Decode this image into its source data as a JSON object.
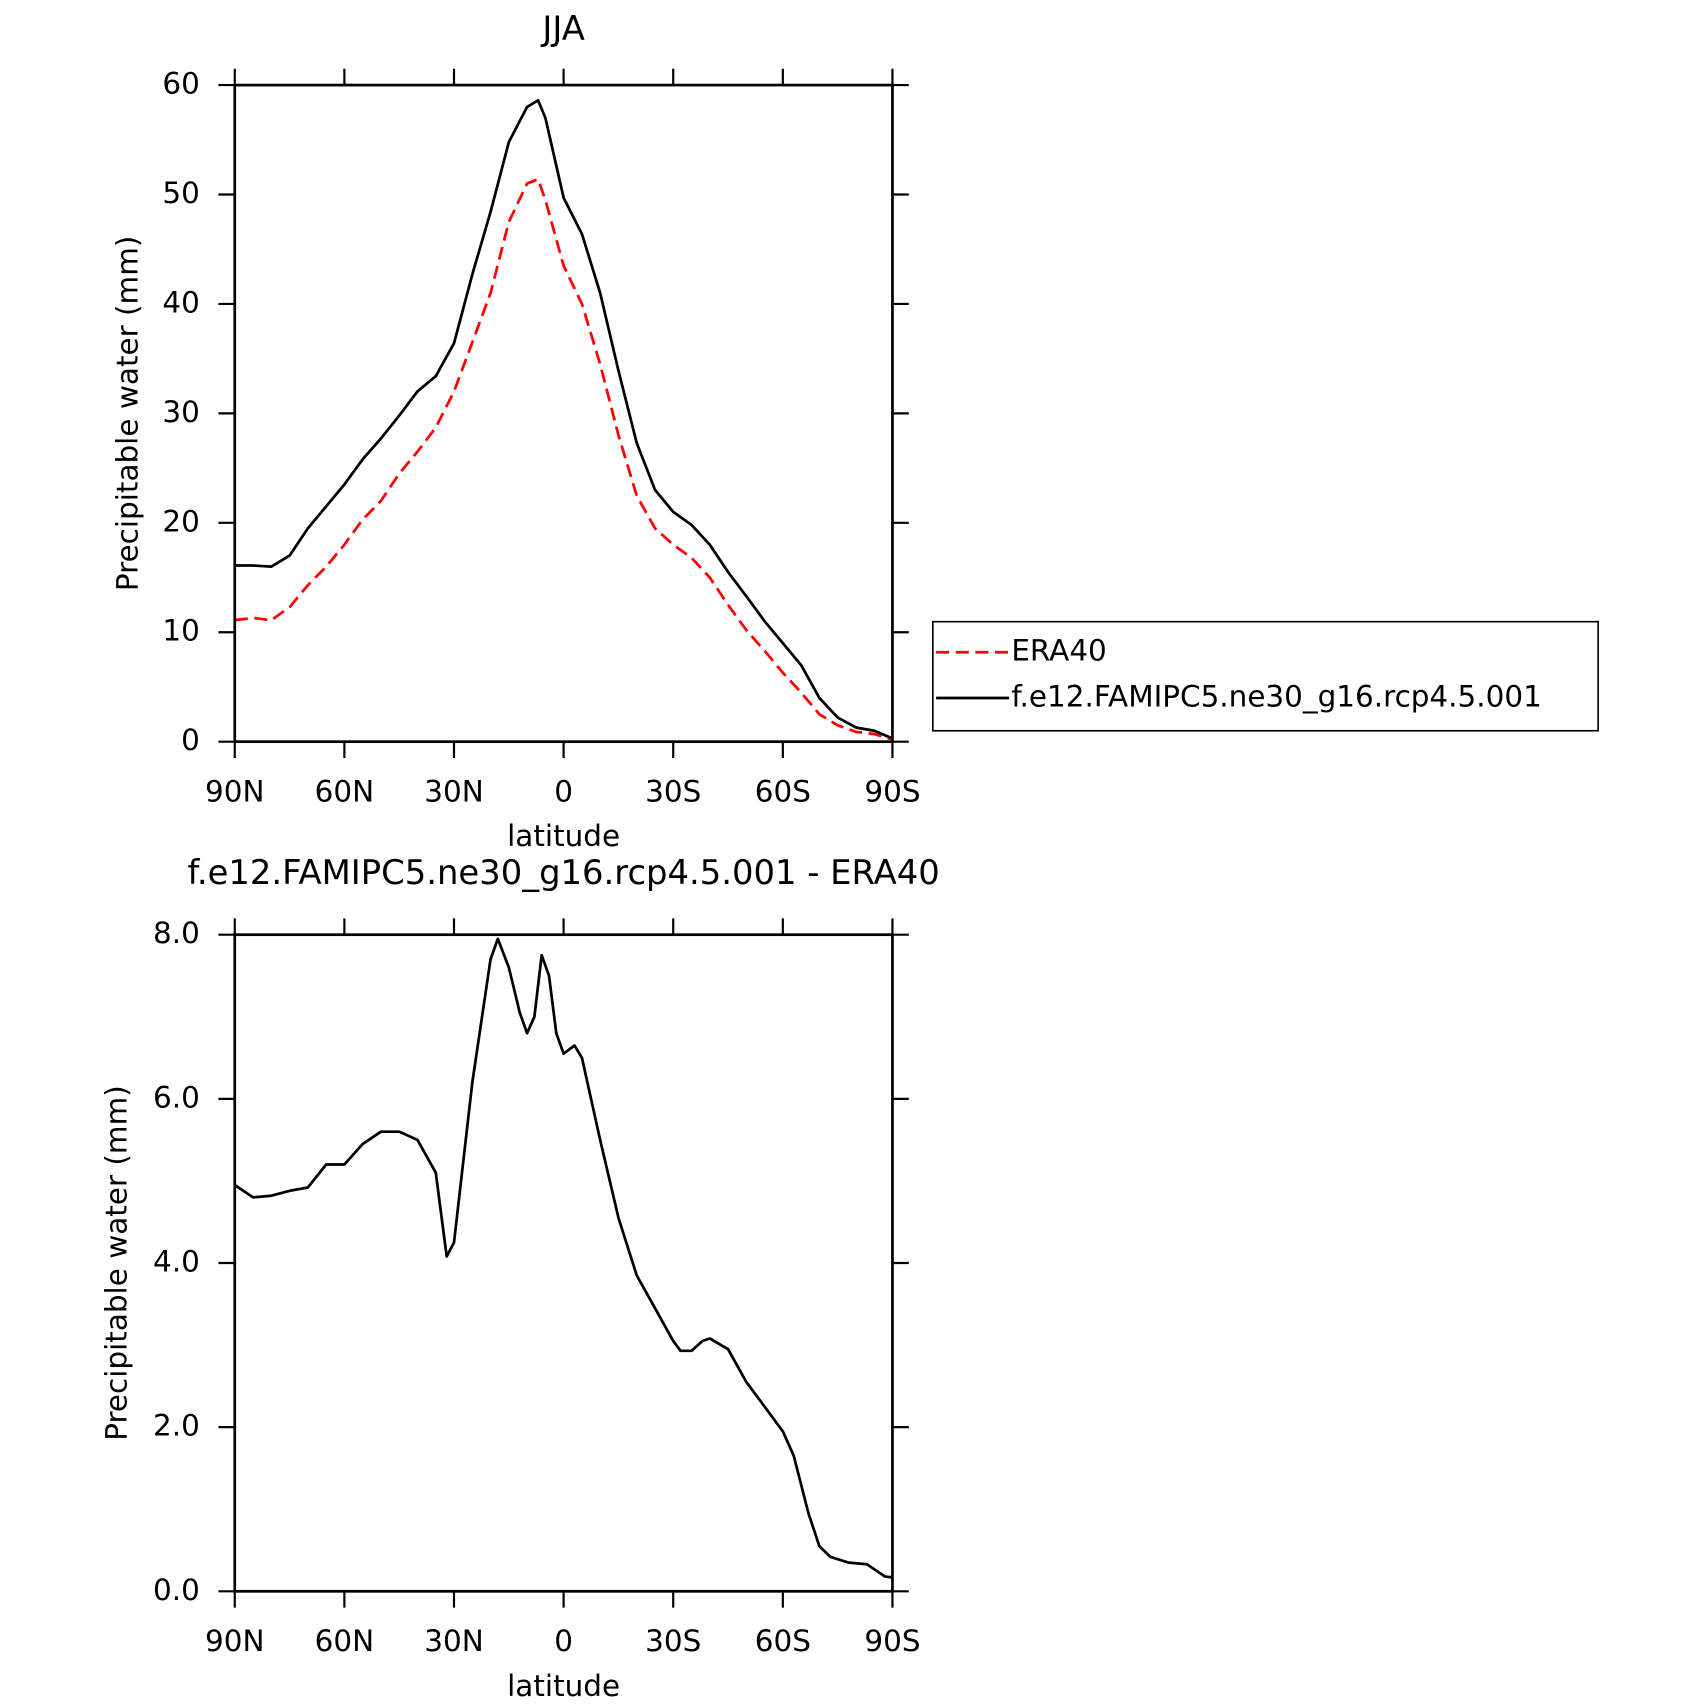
{
  "chart_data": [
    {
      "type": "line",
      "title": "JJA",
      "xlabel": "latitude",
      "ylabel": "Precipitable water (mm)",
      "x": [
        90,
        85,
        80,
        75,
        70,
        65,
        60,
        55,
        50,
        45,
        40,
        35,
        30,
        25,
        20,
        15,
        10,
        7,
        5,
        0,
        -5,
        -10,
        -15,
        -20,
        -25,
        -30,
        -35,
        -40,
        -45,
        -50,
        -55,
        -60,
        -65,
        -70,
        -75,
        -80,
        -85,
        -90
      ],
      "series": [
        {
          "name": "ERA40",
          "color": "#ff0000",
          "dash": true,
          "values": [
            11.1,
            11.3,
            11.1,
            12.3,
            14.3,
            16,
            18,
            20.3,
            22,
            24.5,
            26.5,
            28.7,
            32,
            36.5,
            41,
            47.5,
            51,
            51.4,
            49.5,
            43.5,
            40,
            34.5,
            28,
            22.5,
            19.5,
            18,
            16.8,
            15,
            12.5,
            10.2,
            8.3,
            6.3,
            4.5,
            2.5,
            1.5,
            0.9,
            0.7,
            0.2
          ]
        },
        {
          "name": "f.e12.FAMIPC5.ne30_g16.rcp4.5.001",
          "color": "#000000",
          "dash": false,
          "values": [
            16.1,
            16.1,
            16,
            17,
            19.5,
            21.5,
            23.5,
            25.8,
            27.7,
            29.8,
            32,
            33.4,
            36.4,
            42.7,
            48.4,
            54.8,
            58,
            58.6,
            57,
            49.7,
            46.4,
            41,
            33.9,
            27.3,
            23,
            21,
            19.8,
            18,
            15.5,
            13.3,
            11,
            9,
            7,
            4,
            2.2,
            1.3,
            1,
            0.3
          ]
        }
      ],
      "xlim": [
        90,
        -90
      ],
      "xticks": [
        {
          "value": 90,
          "label": "90N"
        },
        {
          "value": 60,
          "label": "60N"
        },
        {
          "value": 30,
          "label": "30N"
        },
        0,
        {
          "value": -30,
          "label": "30S"
        },
        {
          "value": -60,
          "label": "60S"
        },
        {
          "value": -90,
          "label": "90S"
        }
      ],
      "ylim": [
        0,
        60
      ],
      "yticks": [
        0,
        10,
        20,
        30,
        40,
        50,
        60
      ],
      "legend": "right",
      "grid": false
    },
    {
      "type": "line",
      "title": "f.e12.FAMIPC5.ne30_g16.rcp4.5.001 - ERA40",
      "xlabel": "latitude",
      "ylabel": "Precipitable water (mm)",
      "x": [
        90,
        85,
        80,
        75,
        70,
        65,
        60,
        55,
        50,
        45,
        40,
        35,
        32,
        30,
        25,
        20,
        18,
        15,
        12,
        10,
        8,
        6,
        4,
        2,
        0,
        -3,
        -5,
        -10,
        -15,
        -20,
        -25,
        -30,
        -32,
        -35,
        -38,
        -40,
        -45,
        -50,
        -55,
        -60,
        -63,
        -67,
        -70,
        -73,
        -78,
        -83,
        -88,
        -90
      ],
      "values": [
        4.95,
        4.8,
        4.82,
        4.88,
        4.92,
        5.2,
        5.2,
        5.45,
        5.6,
        5.6,
        5.5,
        5.1,
        4.08,
        4.25,
        6.2,
        7.7,
        7.95,
        7.6,
        7.05,
        6.8,
        7.0,
        7.75,
        7.5,
        6.8,
        6.55,
        6.65,
        6.5,
        5.5,
        4.55,
        3.85,
        3.45,
        3.05,
        2.93,
        2.93,
        3.05,
        3.08,
        2.95,
        2.55,
        2.25,
        1.95,
        1.65,
        0.95,
        0.55,
        0.42,
        0.35,
        0.33,
        0.18,
        0.17
      ],
      "color": "#000000",
      "xlim": [
        90,
        -90
      ],
      "xticks": [
        {
          "value": 90,
          "label": "90N"
        },
        {
          "value": 60,
          "label": "60N"
        },
        {
          "value": 30,
          "label": "30N"
        },
        0,
        {
          "value": -30,
          "label": "30S"
        },
        {
          "value": -60,
          "label": "60S"
        },
        {
          "value": -90,
          "label": "90S"
        }
      ],
      "ylim": [
        0,
        8
      ],
      "yticks": [
        {
          "value": 0,
          "label": "0.0"
        },
        {
          "value": 2,
          "label": "2.0"
        },
        {
          "value": 4,
          "label": "4.0"
        },
        {
          "value": 6,
          "label": "6.0"
        },
        {
          "value": 8,
          "label": "8.0"
        }
      ],
      "grid": false
    }
  ]
}
